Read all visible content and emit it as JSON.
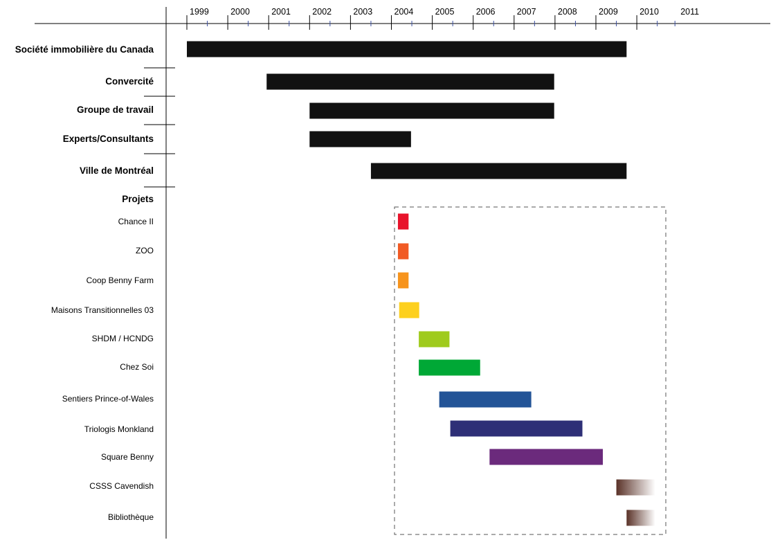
{
  "chart_data": {
    "type": "gantt",
    "xlim": [
      1998.5,
      2011.3
    ],
    "years": [
      "1999",
      "2000",
      "2001",
      "2002",
      "2003",
      "2004",
      "2005",
      "2006",
      "2007",
      "2008",
      "2009",
      "2010",
      "2011"
    ],
    "organizations_header": "",
    "organizations": [
      {
        "label": "Société immobilière du Canada",
        "start": 1999.0,
        "end": 2009.75,
        "color": "#111111"
      },
      {
        "label": "Convercité",
        "start": 2000.95,
        "end": 2007.98,
        "color": "#111111"
      },
      {
        "label": "Groupe de travail",
        "start": 2002.0,
        "end": 2007.98,
        "color": "#111111"
      },
      {
        "label": "Experts/Consultants",
        "start": 2002.0,
        "end": 2004.48,
        "color": "#111111"
      },
      {
        "label": "Ville de Montréal",
        "start": 2003.5,
        "end": 2009.75,
        "color": "#111111"
      }
    ],
    "projects_header": "Projets",
    "projects": [
      {
        "label": "Chance II",
        "start": 2004.16,
        "end": 2004.42,
        "color": "#e8132b"
      },
      {
        "label": "ZOO",
        "start": 2004.16,
        "end": 2004.42,
        "color": "#f15a24"
      },
      {
        "label": "Coop Benny Farm",
        "start": 2004.16,
        "end": 2004.42,
        "color": "#f7941d"
      },
      {
        "label": "Maisons Transitionnelles 03",
        "start": 2004.19,
        "end": 2004.68,
        "color": "#fdd01e"
      },
      {
        "label": "SHDM / HCNDG",
        "start": 2004.67,
        "end": 2005.42,
        "color": "#9fcb1d"
      },
      {
        "label": "Chez Soi",
        "start": 2004.67,
        "end": 2006.17,
        "color": "#00a836"
      },
      {
        "label": "Sentiers Prince-of-Wales",
        "start": 2005.17,
        "end": 2007.42,
        "color": "#235497"
      },
      {
        "label": "Triologis Monkland",
        "start": 2005.44,
        "end": 2008.67,
        "color": "#2e2f77"
      },
      {
        "label": "Square Benny",
        "start": 2006.4,
        "end": 2009.17,
        "color": "#6b2a7c"
      },
      {
        "label": "CSSS Cavendish",
        "start": 2009.5,
        "end": 2010.45,
        "color": "#5a3228",
        "fade": true
      },
      {
        "label": "Bibliothèque",
        "start": 2009.75,
        "end": 2010.45,
        "color": "#5a3228",
        "fade": true
      }
    ],
    "grid": false,
    "legend": "none"
  }
}
